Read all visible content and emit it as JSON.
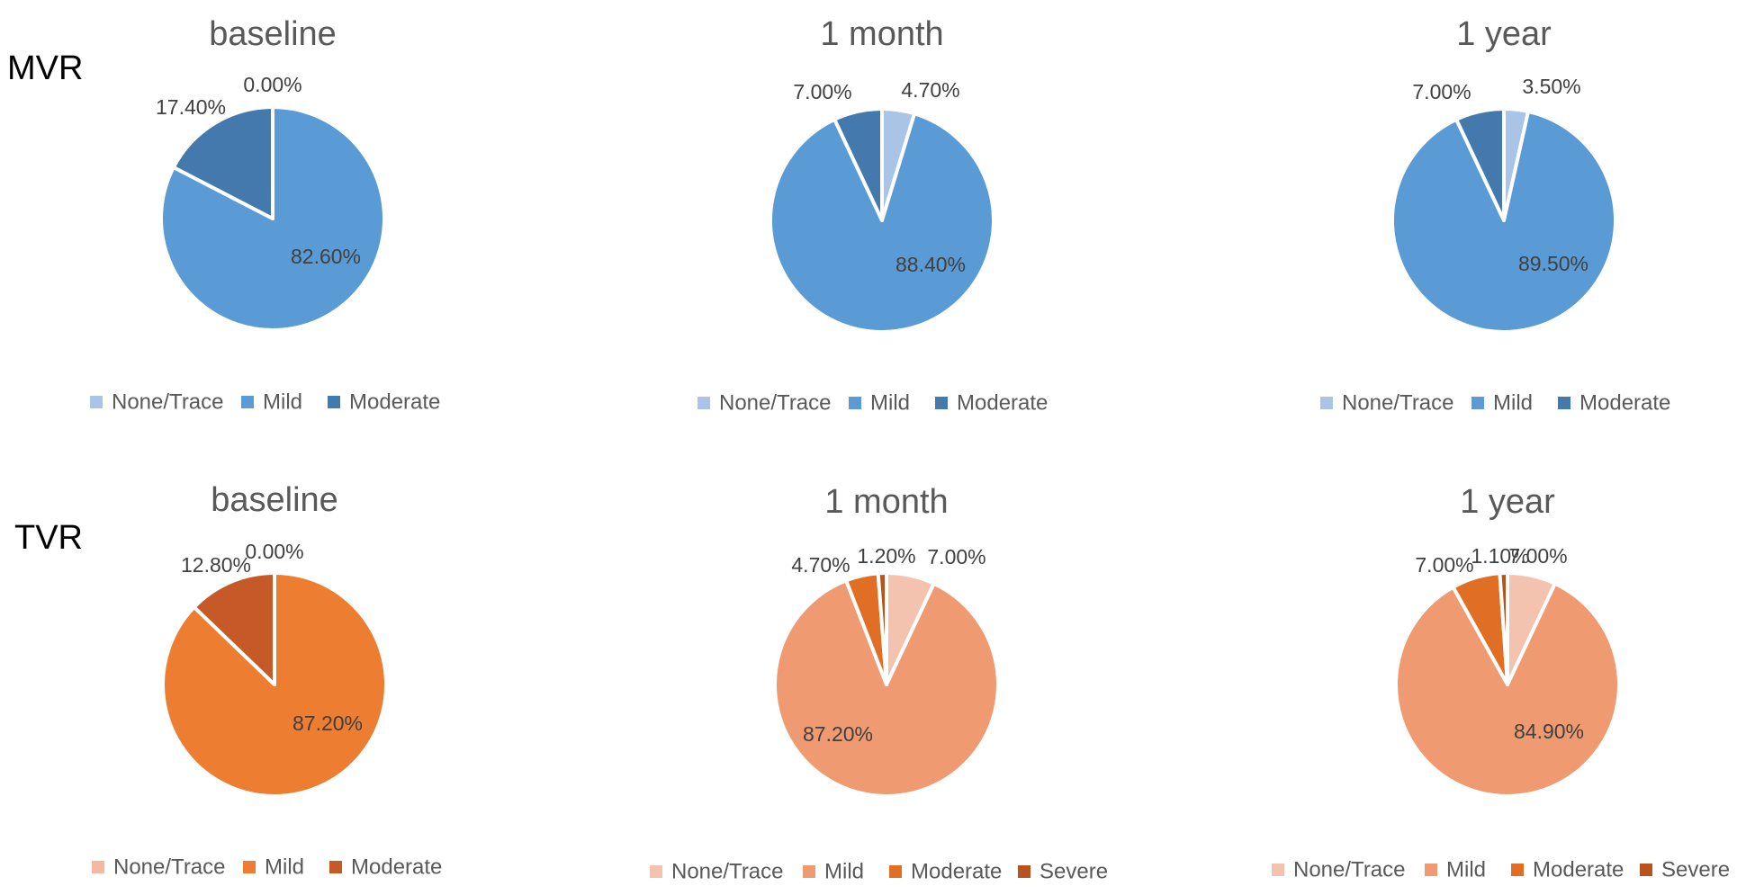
{
  "row_labels": [
    "MVR",
    "TVR"
  ],
  "chart_data": [
    {
      "type": "pie",
      "title": "baseline",
      "categories": [
        "None/Trace",
        "Mild",
        "Moderate"
      ],
      "values": [
        0.0,
        82.6,
        17.4
      ],
      "labels": [
        "0.00%",
        "82.60%",
        "17.40%"
      ],
      "colors": [
        "#a9c4e6",
        "#5b9bd5",
        "#4479ad"
      ]
    },
    {
      "type": "pie",
      "title": "1 month",
      "categories": [
        "None/Trace",
        "Mild",
        "Moderate"
      ],
      "values": [
        4.7,
        88.4,
        7.0
      ],
      "labels": [
        "4.70%",
        "88.40%",
        "7.00%"
      ],
      "colors": [
        "#a9c4e6",
        "#5b9bd5",
        "#4479ad"
      ]
    },
    {
      "type": "pie",
      "title": "1 year",
      "categories": [
        "None/Trace",
        "Mild",
        "Moderate"
      ],
      "values": [
        3.5,
        89.5,
        7.0
      ],
      "labels": [
        "3.50%",
        "89.50%",
        "7.00%"
      ],
      "colors": [
        "#a9c4e6",
        "#5b9bd5",
        "#4479ad"
      ]
    },
    {
      "type": "pie",
      "title": "baseline",
      "categories": [
        "None/Trace",
        "Mild",
        "Moderate"
      ],
      "values": [
        0.0,
        87.2,
        12.8
      ],
      "labels": [
        "0.00%",
        "87.20%",
        "12.80%"
      ],
      "colors": [
        "#f4b9a0",
        "#ed7d31",
        "#c55a28"
      ]
    },
    {
      "type": "pie",
      "title": "1 month",
      "categories": [
        "None/Trace",
        "Mild",
        "Moderate",
        "Severe"
      ],
      "values": [
        7.0,
        87.2,
        4.7,
        1.2
      ],
      "labels": [
        "7.00%",
        "87.20%",
        "4.70%",
        "1.20%"
      ],
      "colors": [
        "#f4c3b0",
        "#f09a71",
        "#e06f25",
        "#b9531d"
      ]
    },
    {
      "type": "pie",
      "title": "1 year",
      "categories": [
        "None/Trace",
        "Mild",
        "Moderate",
        "Severe"
      ],
      "values": [
        7.0,
        84.9,
        7.0,
        1.1
      ],
      "labels": [
        "7.00%",
        "84.90%",
        "7.00%",
        "1.10%"
      ],
      "colors": [
        "#f4c3b0",
        "#f09a71",
        "#e06f25",
        "#b9531d"
      ]
    }
  ]
}
